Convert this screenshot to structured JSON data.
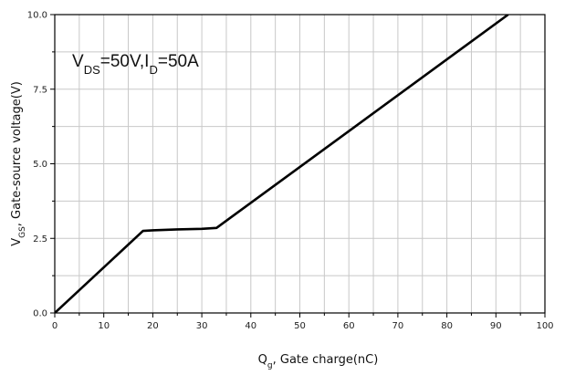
{
  "chart_data": {
    "type": "line",
    "title": "",
    "annotation": {
      "parts": [
        {
          "text": "V",
          "sub": false
        },
        {
          "text": "DS",
          "sub": true
        },
        {
          "text": "=50V,I",
          "sub": false
        },
        {
          "text": "D",
          "sub": true
        },
        {
          "text": "=50A",
          "sub": false
        }
      ]
    },
    "xlabel": {
      "parts": [
        {
          "text": "Q",
          "sub": false
        },
        {
          "text": "g",
          "sub": true
        },
        {
          "text": ", Gate charge(nC)",
          "sub": false
        }
      ]
    },
    "ylabel": {
      "parts": [
        {
          "text": "V",
          "sub": false
        },
        {
          "text": "GS",
          "sub": true
        },
        {
          "text": ", Gate-source voltage(V)",
          "sub": false
        }
      ]
    },
    "xlim": [
      0,
      100
    ],
    "ylim": [
      0,
      10
    ],
    "x_major_ticks": [
      0,
      10,
      20,
      30,
      40,
      50,
      60,
      70,
      80,
      90,
      100
    ],
    "x_tick_labels": [
      "0",
      "10",
      "20",
      "30",
      "40",
      "50",
      "60",
      "70",
      "80",
      "90",
      "100"
    ],
    "y_major_ticks": [
      0,
      2.5,
      5,
      7.5,
      10
    ],
    "y_tick_labels": [
      "0.0",
      "2.5",
      "5.0",
      "7.5",
      "10.0"
    ],
    "x_grid_step": 5,
    "y_grid_step": 1.25,
    "grid": true,
    "series": [
      {
        "x": [
          0,
          18,
          20,
          25,
          30,
          33,
          92.5
        ],
        "y": [
          0,
          2.75,
          2.77,
          2.8,
          2.82,
          2.85,
          10
        ],
        "color": "#000000"
      }
    ]
  }
}
